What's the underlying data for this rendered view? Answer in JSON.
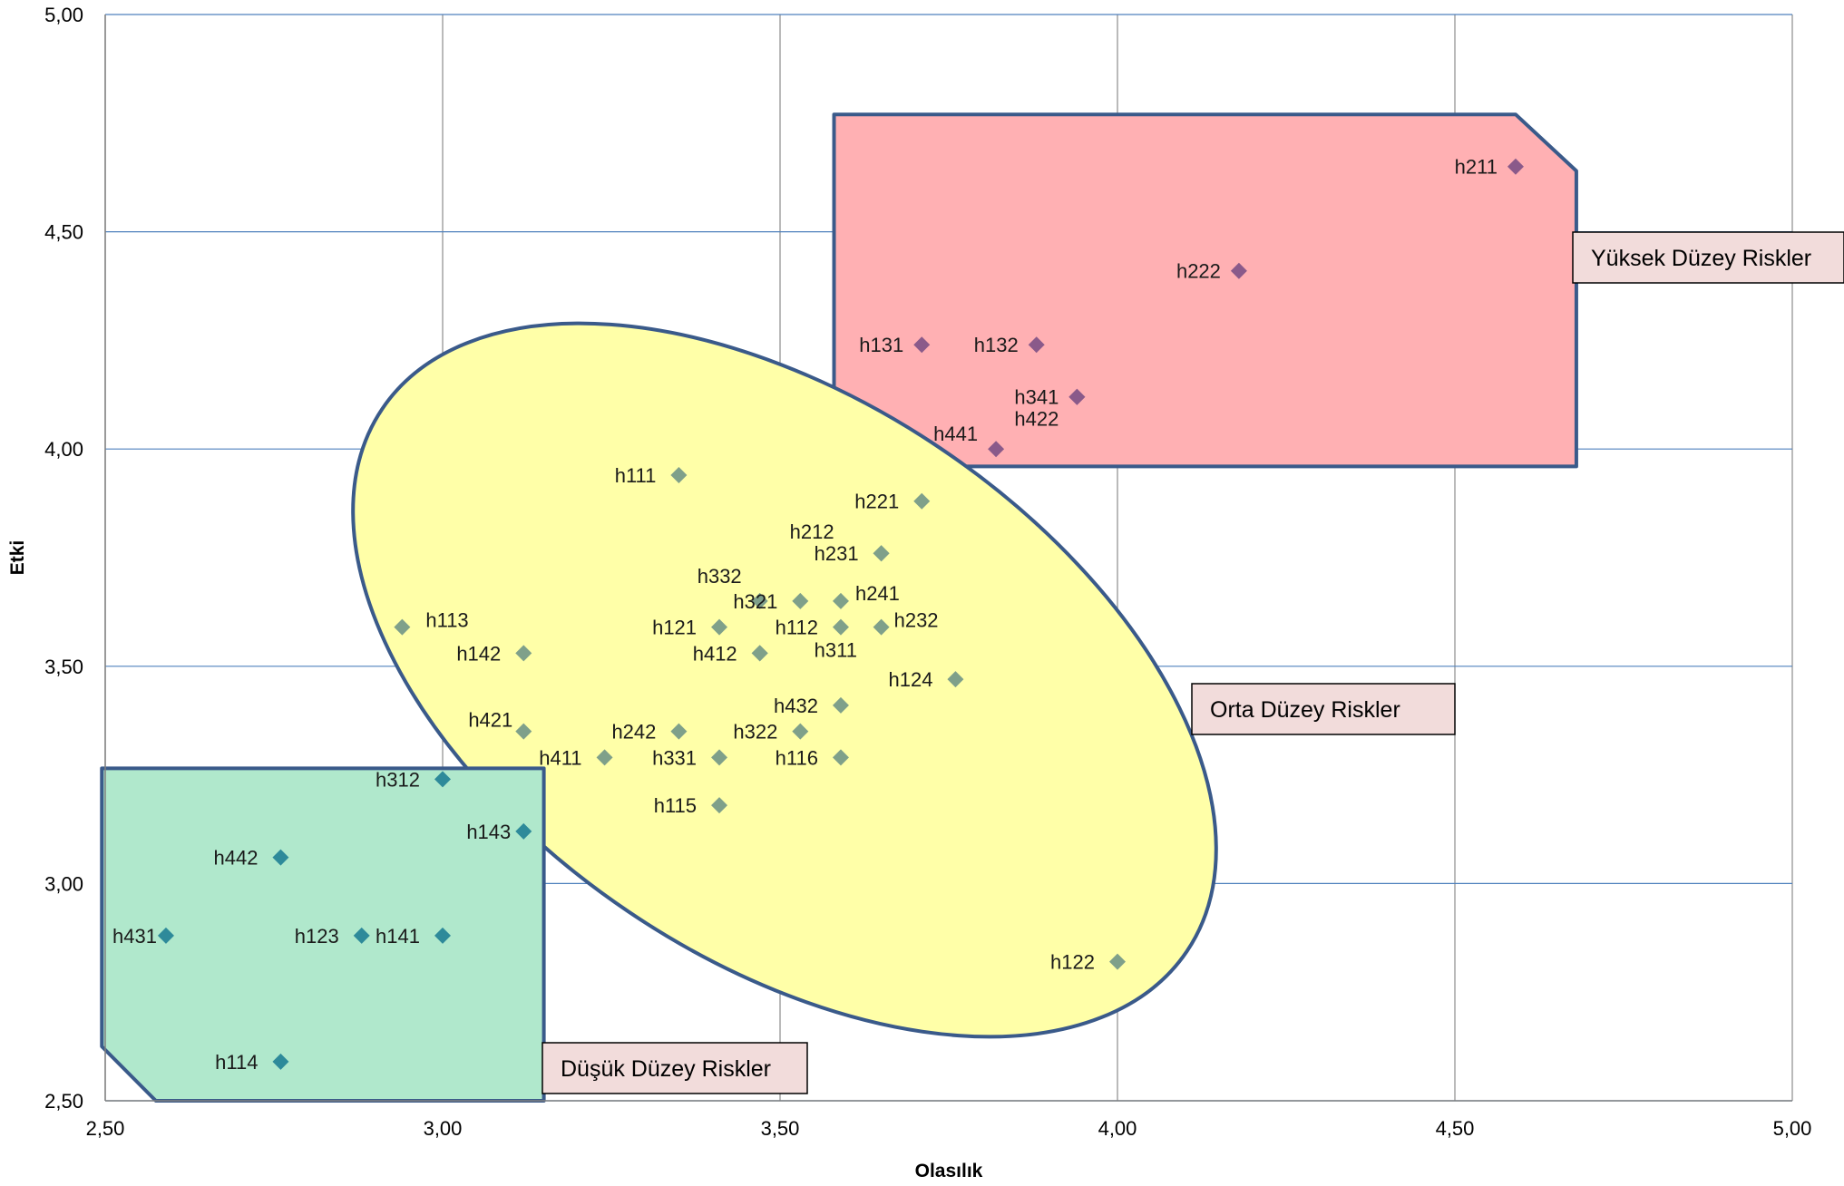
{
  "chart_data": {
    "type": "scatter",
    "title": "",
    "xlabel": "Olasılık",
    "ylabel": "Etki",
    "xlim": [
      2.5,
      5.0
    ],
    "ylim": [
      2.5,
      5.0
    ],
    "xticks": [
      "2,50",
      "3,00",
      "3,50",
      "4,00",
      "4,50",
      "5,00"
    ],
    "yticks": [
      "2,50",
      "3,00",
      "3,50",
      "4,00",
      "4,50",
      "5,00"
    ],
    "grid": true,
    "colors": {
      "high_fill": "#ffb0b3",
      "mid_fill": "#ffffa8",
      "low_fill": "#b0e8cc",
      "region_border": "#3a5a8a",
      "label_box": "#f2dcdb",
      "point_high": "#8a5a8a",
      "point_mid": "#7fa08a",
      "point_low": "#2e8a9a",
      "grid_v": "#8c8c8c",
      "grid_h": "#4f81bd"
    },
    "regions": [
      {
        "name": "Yüksek Düzey Riskler",
        "level": "high"
      },
      {
        "name": "Orta Düzey Riskler",
        "level": "mid"
      },
      {
        "name": "Düşük Düzey Riskler",
        "level": "low"
      }
    ],
    "points": [
      {
        "label": "h211",
        "x": 4.59,
        "y": 4.65,
        "group": "high"
      },
      {
        "label": "h222",
        "x": 4.18,
        "y": 4.41,
        "group": "high"
      },
      {
        "label": "h131",
        "x": 3.71,
        "y": 4.24,
        "group": "high"
      },
      {
        "label": "h132",
        "x": 3.88,
        "y": 4.24,
        "group": "high"
      },
      {
        "label": "h341",
        "x": 3.94,
        "y": 4.12,
        "group": "high"
      },
      {
        "label": "h422",
        "x": 3.94,
        "y": 4.12,
        "group": "high"
      },
      {
        "label": "h441",
        "x": 3.82,
        "y": 4.0,
        "group": "high"
      },
      {
        "label": "h111",
        "x": 3.35,
        "y": 3.94,
        "group": "mid"
      },
      {
        "label": "h221",
        "x": 3.71,
        "y": 3.88,
        "group": "mid"
      },
      {
        "label": "h212",
        "x": 3.65,
        "y": 3.76,
        "group": "mid"
      },
      {
        "label": "h231",
        "x": 3.65,
        "y": 3.76,
        "group": "mid"
      },
      {
        "label": "h332",
        "x": 3.47,
        "y": 3.65,
        "group": "mid"
      },
      {
        "label": "h321",
        "x": 3.53,
        "y": 3.65,
        "group": "mid"
      },
      {
        "label": "h241",
        "x": 3.59,
        "y": 3.65,
        "group": "mid"
      },
      {
        "label": "h113",
        "x": 2.94,
        "y": 3.59,
        "group": "mid"
      },
      {
        "label": "h121",
        "x": 3.41,
        "y": 3.59,
        "group": "mid"
      },
      {
        "label": "h112",
        "x": 3.59,
        "y": 3.59,
        "group": "mid"
      },
      {
        "label": "h232",
        "x": 3.65,
        "y": 3.59,
        "group": "mid"
      },
      {
        "label": "h142",
        "x": 3.12,
        "y": 3.53,
        "group": "mid"
      },
      {
        "label": "h412",
        "x": 3.47,
        "y": 3.53,
        "group": "mid"
      },
      {
        "label": "h311",
        "x": 3.47,
        "y": 3.53,
        "group": "mid"
      },
      {
        "label": "h124",
        "x": 3.76,
        "y": 3.47,
        "group": "mid"
      },
      {
        "label": "h432",
        "x": 3.59,
        "y": 3.41,
        "group": "mid"
      },
      {
        "label": "h421",
        "x": 3.12,
        "y": 3.35,
        "group": "mid"
      },
      {
        "label": "h242",
        "x": 3.35,
        "y": 3.35,
        "group": "mid"
      },
      {
        "label": "h322",
        "x": 3.53,
        "y": 3.35,
        "group": "mid"
      },
      {
        "label": "h411",
        "x": 3.24,
        "y": 3.29,
        "group": "mid"
      },
      {
        "label": "h331",
        "x": 3.41,
        "y": 3.29,
        "group": "mid"
      },
      {
        "label": "h116",
        "x": 3.59,
        "y": 3.29,
        "group": "mid"
      },
      {
        "label": "h115",
        "x": 3.41,
        "y": 3.18,
        "group": "mid"
      },
      {
        "label": "h122",
        "x": 4.0,
        "y": 2.82,
        "group": "mid"
      },
      {
        "label": "h312",
        "x": 3.0,
        "y": 3.24,
        "group": "low"
      },
      {
        "label": "h143",
        "x": 3.12,
        "y": 3.12,
        "group": "low"
      },
      {
        "label": "h442",
        "x": 2.76,
        "y": 3.06,
        "group": "low"
      },
      {
        "label": "h431",
        "x": 2.59,
        "y": 2.88,
        "group": "low"
      },
      {
        "label": "h123",
        "x": 2.88,
        "y": 2.88,
        "group": "low"
      },
      {
        "label": "h141",
        "x": 3.0,
        "y": 2.88,
        "group": "low"
      },
      {
        "label": "h114",
        "x": 2.76,
        "y": 2.59,
        "group": "low"
      }
    ]
  }
}
